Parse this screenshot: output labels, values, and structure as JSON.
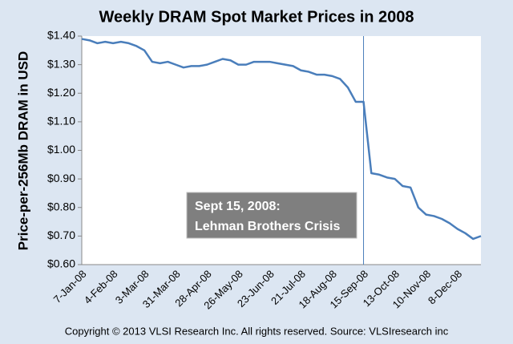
{
  "chart_data": {
    "type": "line",
    "title": "Weekly DRAM Spot Market Prices in 2008",
    "y_label": "Price-per-256Mb DRAM in USD",
    "footer": "Copyright © 2013 VLSI Research Inc.  All rights reserved.  Source:  VLSIresearch inc",
    "categories": [
      "7-Jan-08",
      null,
      null,
      null,
      "4-Feb-08",
      null,
      null,
      null,
      "3-Mar-08",
      null,
      null,
      null,
      "31-Mar-08",
      null,
      null,
      null,
      "28-Apr-08",
      null,
      null,
      null,
      "26-May-08",
      null,
      null,
      null,
      "23-Jun-08",
      null,
      null,
      null,
      "21-Jul-08",
      null,
      null,
      null,
      "18-Aug-08",
      null,
      null,
      null,
      "15-Sep-08",
      null,
      null,
      null,
      "13-Oct-08",
      null,
      null,
      null,
      "10-Nov-08",
      null,
      null,
      null,
      "8-Dec-08",
      null,
      null,
      null
    ],
    "values": [
      1.39,
      1.385,
      1.375,
      1.38,
      1.375,
      1.38,
      1.375,
      1.365,
      1.35,
      1.31,
      1.305,
      1.31,
      1.3,
      1.29,
      1.295,
      1.295,
      1.3,
      1.31,
      1.32,
      1.315,
      1.3,
      1.3,
      1.31,
      1.31,
      1.31,
      1.305,
      1.3,
      1.295,
      1.28,
      1.275,
      1.265,
      1.265,
      1.26,
      1.25,
      1.22,
      1.17,
      1.17,
      0.92,
      0.915,
      0.905,
      0.9,
      0.875,
      0.87,
      0.8,
      0.775,
      0.77,
      0.76,
      0.745,
      0.725,
      0.71,
      0.69,
      0.7
    ],
    "color": "#4a7ebb",
    "ylim": [
      0.6,
      1.4
    ],
    "yticks": [
      {
        "value": 0.6,
        "label": "$0.60"
      },
      {
        "value": 0.7,
        "label": "$0.70"
      },
      {
        "value": 0.8,
        "label": "$0.80"
      },
      {
        "value": 0.9,
        "label": "$0.90"
      },
      {
        "value": 1.0,
        "label": "$1.00"
      },
      {
        "value": 1.1,
        "label": "$1.10"
      },
      {
        "value": 1.2,
        "label": "$1.20"
      },
      {
        "value": 1.3,
        "label": "$1.30"
      },
      {
        "value": 1.4,
        "label": "$1.40"
      }
    ],
    "grid": false,
    "annotation": {
      "at": "15-Sep-08",
      "lines": [
        "Sept 15, 2008:",
        "Lehman Brothers Crisis"
      ]
    }
  }
}
